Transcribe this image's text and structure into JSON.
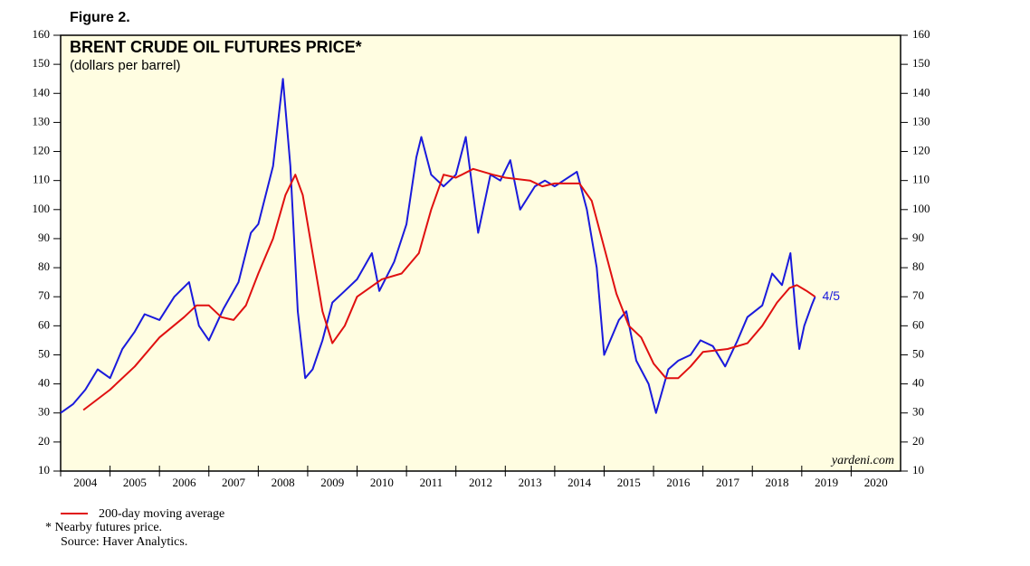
{
  "figure_label": "Figure 2.",
  "chart_data": {
    "type": "line",
    "title": "BRENT CRUDE OIL FUTURES PRICE*",
    "subtitle": "(dollars per barrel)",
    "end_label": "4/5",
    "credit": "yardeni.com",
    "xlim": [
      2004,
      2021
    ],
    "xticks": [
      2004,
      2005,
      2006,
      2007,
      2008,
      2009,
      2010,
      2011,
      2012,
      2013,
      2014,
      2015,
      2016,
      2017,
      2018,
      2019,
      2020
    ],
    "ylim": [
      10,
      160
    ],
    "yticks": [
      10,
      20,
      30,
      40,
      50,
      60,
      70,
      80,
      90,
      100,
      110,
      120,
      130,
      140,
      150,
      160
    ],
    "series": [
      {
        "color": "#1a1adc",
        "x": [
          2004.0,
          2004.25,
          2004.5,
          2004.75,
          2005.0,
          2005.25,
          2005.5,
          2005.7,
          2006.0,
          2006.3,
          2006.6,
          2006.8,
          2007.0,
          2007.3,
          2007.6,
          2007.85,
          2008.0,
          2008.3,
          2008.5,
          2008.65,
          2008.8,
          2008.95,
          2009.1,
          2009.3,
          2009.5,
          2009.75,
          2010.0,
          2010.3,
          2010.45,
          2010.75,
          2011.0,
          2011.2,
          2011.3,
          2011.5,
          2011.75,
          2012.0,
          2012.2,
          2012.45,
          2012.7,
          2012.9,
          2013.1,
          2013.3,
          2013.6,
          2013.8,
          2014.0,
          2014.45,
          2014.65,
          2014.85,
          2015.0,
          2015.3,
          2015.45,
          2015.65,
          2015.9,
          2016.05,
          2016.3,
          2016.5,
          2016.75,
          2016.95,
          2017.2,
          2017.45,
          2017.7,
          2017.9,
          2018.2,
          2018.4,
          2018.6,
          2018.77,
          2018.9,
          2018.95,
          2019.05,
          2019.2,
          2019.27
        ],
        "values": [
          30,
          33,
          38,
          45,
          42,
          52,
          58,
          64,
          62,
          70,
          75,
          60,
          55,
          66,
          75,
          92,
          95,
          115,
          145,
          115,
          65,
          42,
          45,
          55,
          68,
          72,
          76,
          85,
          72,
          82,
          95,
          118,
          125,
          112,
          108,
          112,
          125,
          92,
          112,
          110,
          117,
          100,
          108,
          110,
          108,
          113,
          100,
          80,
          50,
          62,
          65,
          48,
          40,
          30,
          45,
          48,
          50,
          55,
          53,
          46,
          55,
          63,
          67,
          78,
          74,
          85,
          60,
          52,
          60,
          67,
          70
        ]
      },
      {
        "name": "200-day moving average",
        "color": "#e01010",
        "x": [
          2004.46,
          2005.0,
          2005.5,
          2006.0,
          2006.5,
          2006.75,
          2007.0,
          2007.25,
          2007.5,
          2007.75,
          2008.0,
          2008.3,
          2008.55,
          2008.75,
          2008.9,
          2009.1,
          2009.3,
          2009.5,
          2009.75,
          2010.0,
          2010.5,
          2010.9,
          2011.25,
          2011.5,
          2011.75,
          2012.0,
          2012.35,
          2012.75,
          2013.0,
          2013.5,
          2013.75,
          2014.0,
          2014.5,
          2014.75,
          2015.0,
          2015.25,
          2015.5,
          2015.75,
          2016.0,
          2016.25,
          2016.5,
          2016.75,
          2017.0,
          2017.5,
          2017.9,
          2018.2,
          2018.5,
          2018.75,
          2018.9,
          2019.1,
          2019.27
        ],
        "values": [
          31,
          38,
          46,
          56,
          63,
          67,
          67,
          63,
          62,
          67,
          78,
          90,
          105,
          112,
          105,
          85,
          65,
          54,
          60,
          70,
          76,
          78,
          85,
          100,
          112,
          111,
          114,
          112,
          111,
          110,
          108,
          109,
          109,
          103,
          87,
          71,
          60,
          56,
          47,
          42,
          42,
          46,
          51,
          52,
          54,
          60,
          68,
          73,
          74,
          72,
          70
        ]
      }
    ],
    "notes": [
      "* Nearby futures price.",
      "Source: Haver Analytics."
    ]
  }
}
